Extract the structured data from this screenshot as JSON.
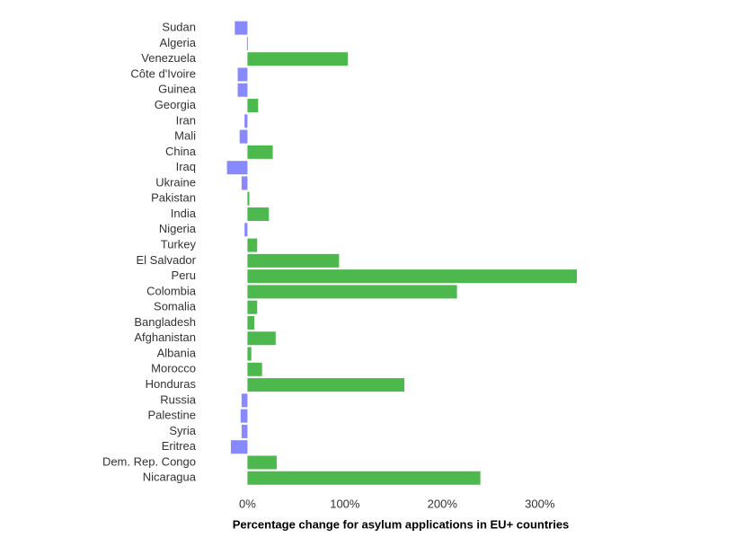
{
  "chart_data": {
    "type": "bar",
    "orientation": "horizontal",
    "x_label": "Percentage change for asylum applications in EU+ countries",
    "categories": [
      "Sudan",
      "Algeria",
      "Venezuela",
      "Côte d'Ivoire",
      "Guinea",
      "Georgia",
      "Iran",
      "Mali",
      "China",
      "Iraq",
      "Ukraine",
      "Pakistan",
      "India",
      "Nigeria",
      "Turkey",
      "El Salvador",
      "Peru",
      "Colombia",
      "Somalia",
      "Bangladesh",
      "Afghanistan",
      "Albania",
      "Morocco",
      "Honduras",
      "Russia",
      "Palestine",
      "Syria",
      "Eritrea",
      "Dem. Rep. Congo",
      "Nicaragua"
    ],
    "values": [
      -13,
      -0.5,
      103,
      -10,
      -10,
      11,
      -3,
      -8,
      26,
      -21,
      -6,
      2,
      22,
      -3,
      10,
      94,
      338,
      215,
      10,
      7,
      29,
      4,
      15,
      161,
      -6,
      -7,
      -6,
      -17,
      30,
      239
    ],
    "colors": {
      "positive": "#4db84d",
      "negative": "#8888ff"
    },
    "xlim": [
      -40,
      350
    ],
    "xticks": [
      {
        "value": 0,
        "label": "0%"
      },
      {
        "value": 100,
        "label": "100%"
      },
      {
        "value": 200,
        "label": "200%"
      },
      {
        "value": 300,
        "label": "300%"
      }
    ],
    "grid": false
  }
}
